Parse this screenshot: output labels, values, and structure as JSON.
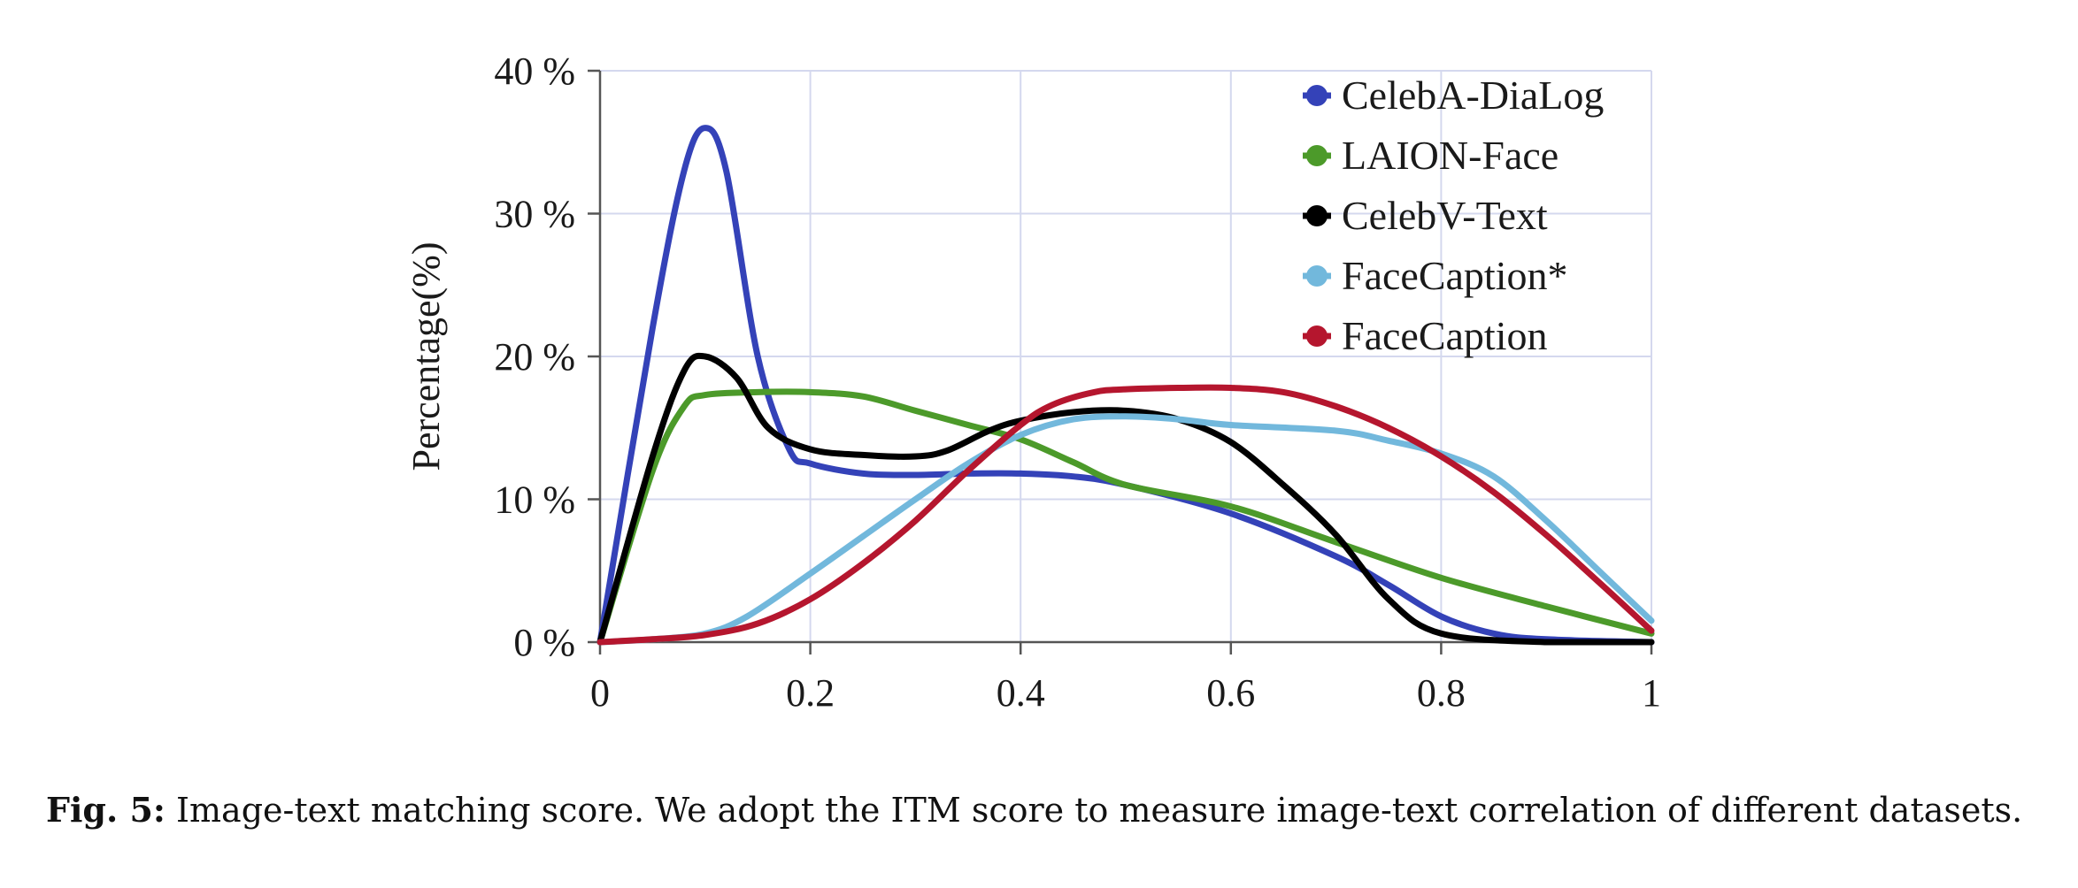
{
  "chart_data": {
    "type": "line",
    "title": "",
    "xlabel": "",
    "ylabel": "Percentage(%)",
    "xlim": [
      0,
      1
    ],
    "ylim": [
      0,
      40
    ],
    "x_ticks": [
      0,
      0.2,
      0.4,
      0.6,
      0.8,
      1
    ],
    "x_tick_labels": [
      "0",
      "0.2",
      "0.4",
      "0.6",
      "0.8",
      "1"
    ],
    "y_ticks": [
      0,
      10,
      20,
      30,
      40
    ],
    "y_tick_labels": [
      "0 %",
      "10 %",
      "20 %",
      "30 %",
      "40 %"
    ],
    "grid": true,
    "legend_position": "top-right",
    "series": [
      {
        "name": "CelebA-DiaLog",
        "color": "#3442b8",
        "x": [
          0,
          0.05,
          0.08,
          0.1,
          0.12,
          0.15,
          0.18,
          0.2,
          0.25,
          0.3,
          0.35,
          0.4,
          0.45,
          0.5,
          0.6,
          0.7,
          0.75,
          0.8,
          0.85,
          0.9,
          1.0
        ],
        "y": [
          0,
          22,
          33,
          36,
          33,
          20,
          13.5,
          12.5,
          11.8,
          11.7,
          11.8,
          11.8,
          11.6,
          11,
          9,
          6,
          4,
          1.8,
          0.6,
          0.2,
          0
        ]
      },
      {
        "name": "LAION-Face",
        "color": "#4c9a2a",
        "x": [
          0,
          0.05,
          0.08,
          0.1,
          0.15,
          0.2,
          0.25,
          0.3,
          0.35,
          0.4,
          0.45,
          0.5,
          0.6,
          0.7,
          0.8,
          0.9,
          1.0
        ],
        "y": [
          0,
          12,
          16.5,
          17.3,
          17.5,
          17.5,
          17.2,
          16.2,
          15.2,
          14.2,
          12.6,
          11,
          9.5,
          7,
          4.5,
          2.5,
          0.6
        ]
      },
      {
        "name": "CelebV-Text",
        "color": "#000000",
        "x": [
          0,
          0.05,
          0.08,
          0.1,
          0.13,
          0.16,
          0.2,
          0.25,
          0.3,
          0.33,
          0.37,
          0.4,
          0.45,
          0.5,
          0.55,
          0.6,
          0.65,
          0.7,
          0.75,
          0.8,
          0.9,
          1.0
        ],
        "y": [
          0,
          13,
          19,
          20,
          18.5,
          15,
          13.5,
          13.1,
          13,
          13.4,
          14.8,
          15.5,
          16.1,
          16.2,
          15.6,
          14,
          11,
          7.5,
          3,
          0.6,
          0,
          0
        ]
      },
      {
        "name": "FaceCaption*",
        "color": "#72b8dc",
        "x": [
          0,
          0.05,
          0.1,
          0.14,
          0.2,
          0.25,
          0.3,
          0.35,
          0.4,
          0.45,
          0.5,
          0.55,
          0.6,
          0.7,
          0.75,
          0.8,
          0.85,
          0.9,
          0.95,
          1.0
        ],
        "y": [
          0,
          0.2,
          0.6,
          1.8,
          4.8,
          7.4,
          10,
          12.5,
          14.5,
          15.6,
          15.8,
          15.6,
          15.2,
          14.8,
          14.1,
          13.2,
          11.6,
          8.5,
          5,
          1.5
        ]
      },
      {
        "name": "FaceCaption",
        "color": "#b5162e",
        "x": [
          0,
          0.05,
          0.1,
          0.15,
          0.2,
          0.25,
          0.3,
          0.35,
          0.4,
          0.43,
          0.47,
          0.5,
          0.55,
          0.6,
          0.65,
          0.7,
          0.75,
          0.8,
          0.85,
          0.9,
          0.95,
          1.0
        ],
        "y": [
          0,
          0.2,
          0.5,
          1.3,
          3,
          5.5,
          8.5,
          12,
          15.2,
          16.6,
          17.5,
          17.7,
          17.8,
          17.8,
          17.5,
          16.5,
          15,
          13,
          10.5,
          7.5,
          4.2,
          0.8
        ]
      }
    ]
  },
  "caption": {
    "label": "Fig. 5:",
    "text": "Image-text matching score. We adopt the ITM score to measure image-text correlation of different datasets."
  }
}
